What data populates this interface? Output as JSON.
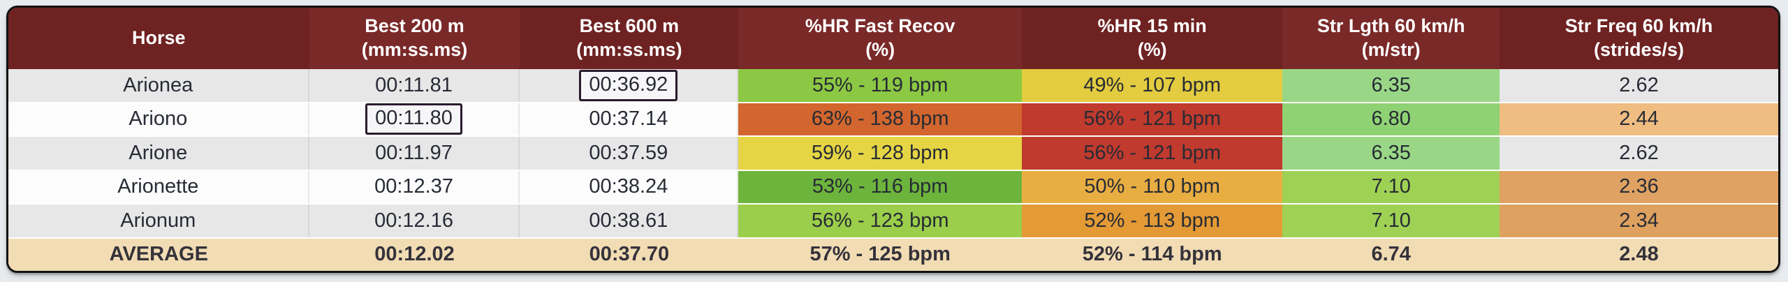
{
  "table": {
    "columns": [
      {
        "label": "Horse",
        "unit": ""
      },
      {
        "label": "Best 200 m",
        "unit": "(mm:ss.ms)"
      },
      {
        "label": "Best 600 m",
        "unit": "(mm:ss.ms)"
      },
      {
        "label": "%HR Fast Recov",
        "unit": "(%)"
      },
      {
        "label": "%HR 15 min",
        "unit": "(%)"
      },
      {
        "label": "Str Lgth 60 km/h",
        "unit": "(m/str)"
      },
      {
        "label": "Str Freq 60 km/h",
        "unit": "(strides/s)"
      }
    ],
    "rows": [
      {
        "horse": "Arionea",
        "best200": {
          "text": "00:11.81",
          "boxed": false
        },
        "best600": {
          "text": "00:36.92",
          "boxed": true
        },
        "hr_fast_recov": {
          "text": "55% - 119 bpm",
          "bg": "#8cc843"
        },
        "hr_15min": {
          "text": "49% - 107 bpm",
          "bg": "#e3cc40"
        },
        "str_lgth": {
          "text": "6.35",
          "bg": "#99d787"
        },
        "str_freq": {
          "text": "2.62",
          "bg": ""
        }
      },
      {
        "horse": "Ariono",
        "best200": {
          "text": "00:11.80",
          "boxed": true
        },
        "best600": {
          "text": "00:37.14",
          "boxed": false
        },
        "hr_fast_recov": {
          "text": "63% - 138 bpm",
          "bg": "#d2662e"
        },
        "hr_15min": {
          "text": "56% - 121 bpm",
          "bg": "#c03a2e"
        },
        "str_lgth": {
          "text": "6.80",
          "bg": "#8fd274"
        },
        "str_freq": {
          "text": "2.44",
          "bg": "#efbc82"
        }
      },
      {
        "horse": "Arione",
        "best200": {
          "text": "00:11.97",
          "boxed": false
        },
        "best600": {
          "text": "00:37.59",
          "boxed": false
        },
        "hr_fast_recov": {
          "text": "59% - 128 bpm",
          "bg": "#e5d544"
        },
        "hr_15min": {
          "text": "56% - 121 bpm",
          "bg": "#c03a2e"
        },
        "str_lgth": {
          "text": "6.35",
          "bg": "#99d787"
        },
        "str_freq": {
          "text": "2.62",
          "bg": ""
        }
      },
      {
        "horse": "Arionette",
        "best200": {
          "text": "00:12.37",
          "boxed": false
        },
        "best600": {
          "text": "00:38.24",
          "boxed": false
        },
        "hr_fast_recov": {
          "text": "53% - 116 bpm",
          "bg": "#6db43d"
        },
        "hr_15min": {
          "text": "50% - 110 bpm",
          "bg": "#e8ae42"
        },
        "str_lgth": {
          "text": "7.10",
          "bg": "#9fd155"
        },
        "str_freq": {
          "text": "2.36",
          "bg": "#dfa263"
        }
      },
      {
        "horse": "Arionum",
        "best200": {
          "text": "00:12.16",
          "boxed": false
        },
        "best600": {
          "text": "00:38.61",
          "boxed": false
        },
        "hr_fast_recov": {
          "text": "56% - 123 bpm",
          "bg": "#9bce4a"
        },
        "hr_15min": {
          "text": "52% - 113 bpm",
          "bg": "#e49a35"
        },
        "str_lgth": {
          "text": "7.10",
          "bg": "#9fd155"
        },
        "str_freq": {
          "text": "2.34",
          "bg": "#dfa15f"
        }
      },
      {
        "horse": "AVERAGE",
        "best200": {
          "text": "00:12.02",
          "boxed": false
        },
        "best600": {
          "text": "00:37.70",
          "boxed": false
        },
        "hr_fast_recov": {
          "text": "57% - 125 bpm",
          "bg": "#f2dcb4"
        },
        "hr_15min": {
          "text": "52% - 114 bpm",
          "bg": "#f2dcb4"
        },
        "str_lgth": {
          "text": "6.74",
          "bg": "#f2dcb4"
        },
        "str_freq": {
          "text": "2.48",
          "bg": "#f2dcb4"
        }
      }
    ]
  },
  "colors": {
    "header_bg": "#6e2222",
    "header_bg_alt": "#7a2929",
    "row_gray": "#e7e7e8",
    "row_white": "#fcfcfd",
    "average_row_bg": "#f2dcb4",
    "highlight_box_border": "#2b1a2e",
    "page_background": "#e9ecef"
  }
}
